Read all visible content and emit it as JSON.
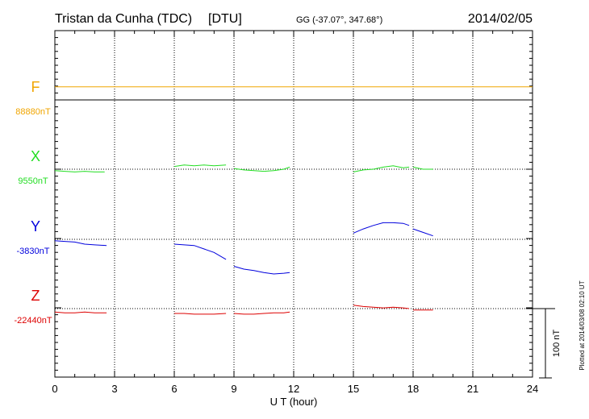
{
  "chart_data": {
    "type": "line",
    "station": "Tristan da Cunha (TDC)",
    "institute": "[DTU]",
    "coords": "GG (-37.07°, 347.68°)",
    "date": "2014/02/05",
    "xlabel": "U T (hour)",
    "xlim": [
      0,
      24
    ],
    "xticks": [
      "0",
      "3",
      "6",
      "9",
      "12",
      "15",
      "18",
      "21",
      "24"
    ],
    "scale_label": "100 nT",
    "scale_nT": 100,
    "footer": "Plotted at 2014/03/08 02:10 UT",
    "grid": true,
    "series": [
      {
        "name": "F",
        "baseline_label": "88880nT",
        "color": "#f0a500",
        "segments": [
          [
            [
              0,
              19
            ],
            [
              3,
              19
            ],
            [
              6,
              19
            ],
            [
              9,
              19
            ],
            [
              12,
              19
            ],
            [
              15,
              19
            ],
            [
              18,
              19
            ],
            [
              21,
              19
            ],
            [
              24,
              19
            ]
          ]
        ]
      },
      {
        "name": "X",
        "baseline_label": "9550nT",
        "color": "#22dd22",
        "segments": [
          [
            [
              0,
              -2
            ],
            [
              0.5,
              -3
            ],
            [
              1.0,
              -4
            ],
            [
              1.5,
              -3
            ],
            [
              2.0,
              -4
            ],
            [
              2.5,
              -4
            ]
          ],
          [
            [
              6.0,
              4
            ],
            [
              6.5,
              6
            ],
            [
              7.0,
              5
            ],
            [
              7.5,
              6
            ],
            [
              8.0,
              5
            ],
            [
              8.6,
              6
            ]
          ],
          [
            [
              9.0,
              1
            ],
            [
              9.5,
              -1
            ],
            [
              10.0,
              -2
            ],
            [
              10.5,
              -3
            ],
            [
              11.0,
              -2
            ],
            [
              11.5,
              0
            ],
            [
              11.8,
              3
            ]
          ],
          [
            [
              15.0,
              -4
            ],
            [
              15.5,
              -1
            ],
            [
              16.0,
              0
            ],
            [
              16.5,
              3
            ],
            [
              17.0,
              5
            ],
            [
              17.5,
              2
            ],
            [
              17.8,
              3
            ]
          ],
          [
            [
              18.0,
              3
            ],
            [
              18.5,
              0
            ],
            [
              19.0,
              0
            ]
          ]
        ]
      },
      {
        "name": "Y",
        "baseline_label": "-3830nT",
        "color": "#0000dd",
        "segments": [
          [
            [
              0,
              -2
            ],
            [
              0.5,
              -3
            ],
            [
              1.0,
              -4
            ],
            [
              1.5,
              -7
            ],
            [
              2.0,
              -8
            ],
            [
              2.6,
              -9
            ]
          ],
          [
            [
              6.0,
              -7
            ],
            [
              6.5,
              -8
            ],
            [
              7.0,
              -9
            ],
            [
              7.5,
              -14
            ],
            [
              8.0,
              -19
            ],
            [
              8.6,
              -29
            ]
          ],
          [
            [
              9.0,
              -39
            ],
            [
              9.5,
              -43
            ],
            [
              10.0,
              -45
            ],
            [
              10.5,
              -48
            ],
            [
              11.0,
              -50
            ],
            [
              11.5,
              -49
            ],
            [
              11.8,
              -48
            ]
          ],
          [
            [
              15.0,
              9
            ],
            [
              15.5,
              15
            ],
            [
              16.0,
              20
            ],
            [
              16.5,
              24
            ],
            [
              17.0,
              24
            ],
            [
              17.5,
              23
            ],
            [
              17.8,
              20
            ]
          ],
          [
            [
              18.0,
              15
            ],
            [
              18.5,
              10
            ],
            [
              19.0,
              5
            ]
          ]
        ]
      },
      {
        "name": "Z",
        "baseline_label": "-22440nT",
        "color": "#dd0000",
        "segments": [
          [
            [
              0,
              -5
            ],
            [
              0.5,
              -6
            ],
            [
              1.0,
              -6
            ],
            [
              1.5,
              -5
            ],
            [
              2.0,
              -6
            ],
            [
              2.6,
              -6
            ]
          ],
          [
            [
              6.0,
              -7
            ],
            [
              6.5,
              -7
            ],
            [
              7.0,
              -8
            ],
            [
              7.5,
              -8
            ],
            [
              8.0,
              -8
            ],
            [
              8.6,
              -7
            ]
          ],
          [
            [
              9.0,
              -7
            ],
            [
              9.5,
              -8
            ],
            [
              10.0,
              -8
            ],
            [
              10.5,
              -7
            ],
            [
              11.0,
              -6
            ],
            [
              11.5,
              -6
            ],
            [
              11.8,
              -5
            ]
          ],
          [
            [
              15.0,
              5
            ],
            [
              15.5,
              3
            ],
            [
              16.0,
              2
            ],
            [
              16.5,
              1
            ],
            [
              17.0,
              2
            ],
            [
              17.5,
              1
            ],
            [
              17.8,
              0
            ]
          ],
          [
            [
              18.0,
              -2
            ],
            [
              18.5,
              -2
            ],
            [
              19.0,
              -2
            ]
          ]
        ]
      }
    ]
  }
}
